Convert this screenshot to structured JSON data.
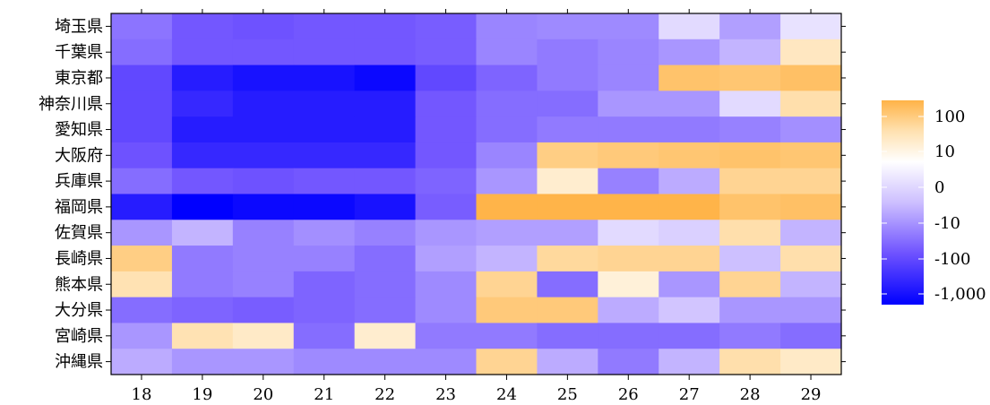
{
  "chart_data": {
    "type": "heatmap",
    "title": "",
    "xlabel": "",
    "ylabel": "",
    "x": [
      "18",
      "19",
      "20",
      "21",
      "22",
      "23",
      "24",
      "25",
      "26",
      "27",
      "28",
      "29"
    ],
    "y": [
      "埼玉県",
      "千葉県",
      "東京都",
      "神奈川県",
      "愛知県",
      "大阪府",
      "兵庫県",
      "福岡県",
      "佐賀県",
      "長崎県",
      "熊本県",
      "大分県",
      "宮崎県",
      "沖縄県"
    ],
    "values": [
      [
        -120,
        -300,
        -350,
        -300,
        -300,
        -250,
        -70,
        -60,
        -60,
        -3,
        -30,
        -2
      ],
      [
        -150,
        -300,
        -300,
        -300,
        -300,
        -250,
        -70,
        -100,
        -70,
        -40,
        -15,
        5
      ],
      [
        -400,
        -700,
        -800,
        -800,
        -900,
        -400,
        -200,
        -100,
        -70,
        60,
        50,
        70
      ],
      [
        -400,
        -600,
        -700,
        -700,
        -700,
        -300,
        -150,
        -150,
        -40,
        -40,
        -3,
        10
      ],
      [
        -400,
        -700,
        -700,
        -700,
        -700,
        -300,
        -150,
        -100,
        -100,
        -100,
        -80,
        -50
      ],
      [
        -350,
        -600,
        -600,
        -600,
        -600,
        -300,
        -70,
        30,
        40,
        50,
        60,
        50
      ],
      [
        -150,
        -300,
        -350,
        -300,
        -300,
        -200,
        -40,
        3,
        -80,
        -20,
        20,
        20
      ],
      [
        -700,
        -1000,
        -900,
        -900,
        -800,
        -250,
        150,
        150,
        150,
        150,
        60,
        70
      ],
      [
        -40,
        -15,
        -80,
        -50,
        -80,
        -40,
        -30,
        -30,
        -3,
        -5,
        10,
        -15
      ],
      [
        30,
        -100,
        -80,
        -80,
        -150,
        -30,
        -15,
        15,
        20,
        20,
        -10,
        10
      ],
      [
        8,
        -100,
        -80,
        -200,
        -150,
        -60,
        20,
        -150,
        2,
        -40,
        20,
        -15
      ],
      [
        -150,
        -200,
        -250,
        -200,
        -150,
        -60,
        40,
        40,
        -20,
        -8,
        -40,
        -40
      ],
      [
        -40,
        8,
        4,
        -150,
        3,
        -100,
        -100,
        -150,
        -150,
        -150,
        -100,
        -150
      ],
      [
        -20,
        -40,
        -40,
        -60,
        -60,
        -60,
        20,
        -20,
        -100,
        -15,
        10,
        4
      ]
    ],
    "colorbar": {
      "ticks": [
        100,
        10,
        0,
        -10,
        -100,
        -1000
      ],
      "tick_labels": [
        "100",
        "10",
        "0",
        "-10",
        "-100",
        "-1,000"
      ],
      "range": [
        -1000,
        200
      ]
    },
    "colors": {
      "negative": "#0000ff",
      "neutral": "#ffffff",
      "positive": "#ffb347"
    },
    "grid": false,
    "legend": "right"
  }
}
